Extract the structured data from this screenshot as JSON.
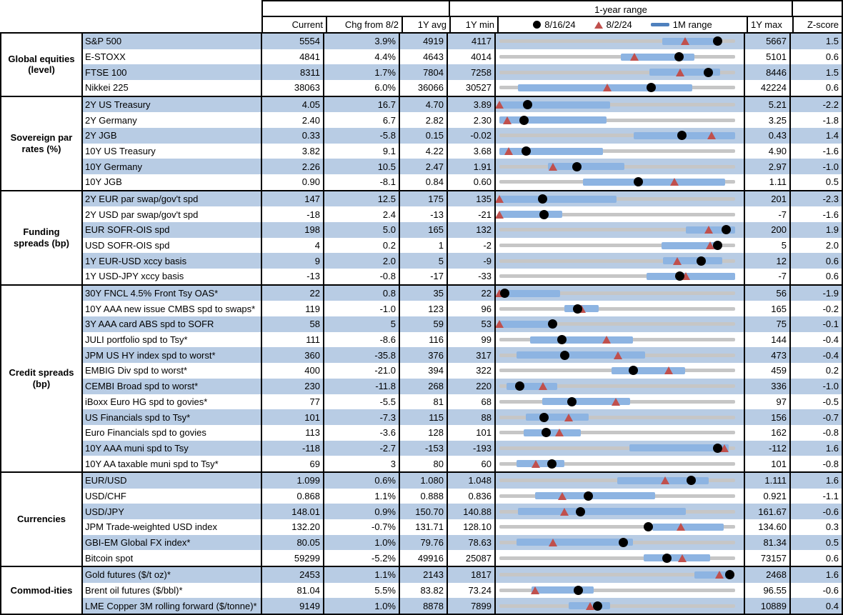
{
  "header": {
    "range_title": "1-year range",
    "columns": {
      "current": "Current",
      "chg": "Chg from 8/2",
      "avg": "1Y avg",
      "min": "1Y min",
      "max": "1Y max",
      "z": "Z-score"
    },
    "legend": [
      {
        "icon": "dot-icon",
        "label": "8/16/24"
      },
      {
        "icon": "triangle-icon",
        "label": "8/2/24"
      },
      {
        "icon": "bar-icon",
        "label": "1M range"
      }
    ]
  },
  "colors": {
    "row_stripe": "#B8CCE4",
    "range_bar": "#8DB4E2",
    "track": "#C6C6C6",
    "triangle": "#C0504D",
    "dot": "#000000",
    "legend_bar": "#4F81BD"
  },
  "chart_data": {
    "type": "table",
    "note": "dot = 8/16/24 value, tri = 8/2/24 value, bar = 1M range; positions are fractions of 1Y min-max track"
  },
  "groups": [
    {
      "label": "Global equities (level)",
      "rows": [
        {
          "label": "S&P 500",
          "current": "5554",
          "chg": "3.9%",
          "avg": "4919",
          "min": "4117",
          "max": "5667",
          "z": "1.5",
          "bar": [
            0.69,
            0.916
          ],
          "dot": 0.927,
          "tri": 0.79
        },
        {
          "label": "E-STOXX",
          "current": "4841",
          "chg": "4.4%",
          "avg": "4643",
          "min": "4014",
          "max": "5101",
          "z": "0.6",
          "bar": [
            0.514,
            0.827
          ],
          "dot": 0.761,
          "tri": 0.573
        },
        {
          "label": "FTSE 100",
          "current": "8311",
          "chg": "1.7%",
          "avg": "7804",
          "min": "7258",
          "max": "8446",
          "z": "1.5",
          "bar": [
            0.635,
            0.936
          ],
          "dot": 0.886,
          "tri": 0.769
        },
        {
          "label": "Nikkei 225",
          "current": "38063",
          "chg": "6.0%",
          "avg": "36066",
          "min": "30527",
          "max": "42224",
          "z": "0.6",
          "bar": [
            0.079,
            0.817
          ],
          "dot": 0.644,
          "tri": 0.46
        }
      ]
    },
    {
      "label": "Sovereign par rates (%)",
      "rows": [
        {
          "label": "2Y US Treasury",
          "current": "4.05",
          "chg": "16.7",
          "avg": "4.70",
          "min": "3.89",
          "max": "5.21",
          "z": "-2.2",
          "bar": [
            0.0,
            0.47
          ],
          "dot": 0.121,
          "tri": 0.003
        },
        {
          "label": "2Y Germany",
          "current": "2.40",
          "chg": "6.7",
          "avg": "2.82",
          "min": "2.30",
          "max": "3.25",
          "z": "-1.8",
          "bar": [
            0.0,
            0.455
          ],
          "dot": 0.105,
          "tri": 0.035
        },
        {
          "label": "2Y JGB",
          "current": "0.33",
          "chg": "-5.8",
          "avg": "0.15",
          "min": "-0.02",
          "max": "0.43",
          "z": "1.4",
          "bar": [
            0.569,
            1.0
          ],
          "dot": 0.775,
          "tri": 0.9
        },
        {
          "label": "10Y US Treasury",
          "current": "3.82",
          "chg": "9.1",
          "avg": "4.22",
          "min": "3.68",
          "max": "4.90",
          "z": "-1.6",
          "bar": [
            0.0,
            0.44
          ],
          "dot": 0.115,
          "tri": 0.04
        },
        {
          "label": "10Y Germany",
          "current": "2.26",
          "chg": "10.5",
          "avg": "2.47",
          "min": "1.91",
          "max": "2.97",
          "z": "-1.0",
          "bar": [
            0.205,
            0.53
          ],
          "dot": 0.33,
          "tri": 0.23
        },
        {
          "label": "10Y JGB",
          "current": "0.90",
          "chg": "-8.1",
          "avg": "0.84",
          "min": "0.60",
          "max": "1.11",
          "z": "0.5",
          "bar": [
            0.355,
            0.957
          ],
          "dot": 0.588,
          "tri": 0.745
        }
      ]
    },
    {
      "label": "Funding spreads (bp)",
      "rows": [
        {
          "label": "2Y EUR par swap/gov't spd",
          "current": "147",
          "chg": "12.5",
          "avg": "175",
          "min": "135",
          "max": "201",
          "z": "-2.3",
          "bar": [
            0.0,
            0.496
          ],
          "dot": 0.182,
          "tri": 0.003
        },
        {
          "label": "2Y USD par swap/gov't spd",
          "current": "-18",
          "chg": "2.4",
          "avg": "-13",
          "min": "-21",
          "max": "-7",
          "z": "-1.6",
          "bar": [
            0.0,
            0.268
          ],
          "dot": 0.19,
          "tri": 0.003
        },
        {
          "label": "EUR SOFR-OIS spd",
          "current": "198",
          "chg": "5.0",
          "avg": "165",
          "min": "132",
          "max": "200",
          "z": "1.9",
          "bar": [
            0.792,
            1.0
          ],
          "dot": 0.962,
          "tri": 0.89
        },
        {
          "label": "USD SOFR-OIS spd",
          "current": "4",
          "chg": "0.2",
          "avg": "1",
          "min": "-2",
          "max": "5",
          "z": "2.0",
          "bar": [
            0.687,
            0.937
          ],
          "dot": 0.925,
          "tri": 0.895
        },
        {
          "label": "1Y EUR-USD xccy basis",
          "current": "9",
          "chg": "2.0",
          "avg": "5",
          "min": "-9",
          "max": "12",
          "z": "0.6",
          "bar": [
            0.695,
            0.946
          ],
          "dot": 0.857,
          "tri": 0.757
        },
        {
          "label": "1Y USD-JPY xccy basis",
          "current": "-13",
          "chg": "-0.8",
          "avg": "-17",
          "min": "-33",
          "max": "-7",
          "z": "0.6",
          "bar": [
            0.625,
            1.0
          ],
          "dot": 0.765,
          "tri": 0.793
        }
      ]
    },
    {
      "label": "Credit spreads (bp)",
      "rows": [
        {
          "label": "30Y FNCL 4.5% Front Tsy OAS*",
          "current": "22",
          "chg": "0.8",
          "avg": "35",
          "min": "22",
          "max": "56",
          "z": "-1.9",
          "bar": [
            0.0,
            0.258
          ],
          "dot": 0.022,
          "tri": 0.003
        },
        {
          "label": "10Y AAA new issue CMBS spd to swaps*",
          "current": "119",
          "chg": "-1.0",
          "avg": "123",
          "min": "96",
          "max": "165",
          "z": "-0.2",
          "bar": [
            0.277,
            0.42
          ],
          "dot": 0.331,
          "tri": 0.35
        },
        {
          "label": "3Y AAA card ABS spd to SOFR",
          "current": "58",
          "chg": "5",
          "avg": "59",
          "min": "53",
          "max": "75",
          "z": "-0.1",
          "bar": [
            0.0,
            0.22
          ],
          "dot": 0.227,
          "tri": 0.003
        },
        {
          "label": "JULI portfolio spd to Tsy*",
          "current": "111",
          "chg": "-8.6",
          "avg": "116",
          "min": "99",
          "max": "144",
          "z": "-0.4",
          "bar": [
            0.13,
            0.568
          ],
          "dot": 0.265,
          "tri": 0.455
        },
        {
          "label": "JPM US HY index spd to worst*",
          "current": "360",
          "chg": "-35.8",
          "avg": "376",
          "min": "317",
          "max": "473",
          "z": "-0.4",
          "bar": [
            0.074,
            0.618
          ],
          "dot": 0.276,
          "tri": 0.505
        },
        {
          "label": "EMBIG Div spd to worst*",
          "current": "400",
          "chg": "-21.0",
          "avg": "394",
          "min": "322",
          "max": "459",
          "z": "0.2",
          "bar": [
            0.476,
            0.787
          ],
          "dot": 0.568,
          "tri": 0.72
        },
        {
          "label": "CEMBI Broad spd to worst*",
          "current": "230",
          "chg": "-11.8",
          "avg": "268",
          "min": "220",
          "max": "336",
          "z": "-1.0",
          "bar": [
            0.029,
            0.245
          ],
          "dot": 0.086,
          "tri": 0.186
        },
        {
          "label": "iBoxx Euro HG spd to govies*",
          "current": "77",
          "chg": "-5.5",
          "avg": "81",
          "min": "68",
          "max": "97",
          "z": "-0.5",
          "bar": [
            0.183,
            0.554
          ],
          "dot": 0.308,
          "tri": 0.496
        },
        {
          "label": "US Financials spd to Tsy*",
          "current": "101",
          "chg": "-7.3",
          "avg": "115",
          "min": "88",
          "max": "156",
          "z": "-0.7",
          "bar": [
            0.112,
            0.378
          ],
          "dot": 0.188,
          "tri": 0.296
        },
        {
          "label": "Euro Financials spd to govies",
          "current": "113",
          "chg": "-3.6",
          "avg": "128",
          "min": "101",
          "max": "162",
          "z": "-0.8",
          "bar": [
            0.102,
            0.345
          ],
          "dot": 0.198,
          "tri": 0.257
        },
        {
          "label": "10Y AAA muni spd to Tsy",
          "current": "-118",
          "chg": "-2.7",
          "avg": "-153",
          "min": "-193",
          "max": "-112",
          "z": "1.6",
          "bar": [
            0.551,
            0.973
          ],
          "dot": 0.925,
          "tri": 0.957
        },
        {
          "label": "10Y AA taxable muni spd to Tsy*",
          "current": "69",
          "chg": "3",
          "avg": "80",
          "min": "60",
          "max": "101",
          "z": "-0.8",
          "bar": [
            0.074,
            0.275
          ],
          "dot": 0.223,
          "tri": 0.155
        }
      ]
    },
    {
      "label": "Currencies",
      "rows": [
        {
          "label": "EUR/USD",
          "current": "1.099",
          "chg": "0.6%",
          "avg": "1.080",
          "min": "1.048",
          "max": "1.111",
          "z": "1.6",
          "bar": [
            0.501,
            0.888
          ],
          "dot": 0.813,
          "tri": 0.706
        },
        {
          "label": "USD/CHF",
          "current": "0.868",
          "chg": "1.1%",
          "avg": "0.888",
          "min": "0.836",
          "max": "0.921",
          "z": "-1.1",
          "bar": [
            0.153,
            0.662
          ],
          "dot": 0.378,
          "tri": 0.268
        },
        {
          "label": "USD/JPY",
          "current": "148.01",
          "chg": "0.9%",
          "avg": "150.70",
          "min": "140.88",
          "max": "161.67",
          "z": "-0.6",
          "bar": [
            0.079,
            0.792
          ],
          "dot": 0.343,
          "tri": 0.278
        },
        {
          "label": "JPM Trade-weighted USD index",
          "current": "132.20",
          "chg": "-0.7%",
          "avg": "131.71",
          "min": "128.10",
          "max": "134.60",
          "z": "0.3",
          "bar": [
            0.647,
            0.953
          ],
          "dot": 0.631,
          "tri": 0.771
        },
        {
          "label": "GBI-EM Global FX index*",
          "current": "80.05",
          "chg": "1.0%",
          "avg": "79.76",
          "min": "78.63",
          "max": "81.34",
          "z": "0.5",
          "bar": [
            0.072,
            0.566
          ],
          "dot": 0.525,
          "tri": 0.23
        },
        {
          "label": "Bitcoin spot",
          "current": "59299",
          "chg": "-5.2%",
          "avg": "49916",
          "min": "25087",
          "max": "73157",
          "z": "0.6",
          "bar": [
            0.611,
            0.895
          ],
          "dot": 0.712,
          "tri": 0.778
        }
      ]
    },
    {
      "label": "Commod-ities",
      "rows": [
        {
          "label": "Gold futures ($/t oz)*",
          "current": "2453",
          "chg": "1.1%",
          "avg": "2143",
          "min": "1817",
          "max": "2468",
          "z": "1.6",
          "bar": [
            0.827,
            0.993
          ],
          "dot": 0.977,
          "tri": 0.934
        },
        {
          "label": "Brent oil futures ($/bbl)*",
          "current": "81.04",
          "chg": "5.5%",
          "avg": "83.82",
          "min": "73.24",
          "max": "96.55",
          "z": "-0.6",
          "bar": [
            0.135,
            0.401
          ],
          "dot": 0.334,
          "tri": 0.154
        },
        {
          "label": "LME Copper 3M rolling forward ($/tonne)*",
          "current": "9149",
          "chg": "1.0%",
          "avg": "8878",
          "min": "7899",
          "max": "10889",
          "z": "0.4",
          "bar": [
            0.295,
            0.471
          ],
          "dot": 0.417,
          "tri": 0.387
        }
      ]
    }
  ]
}
